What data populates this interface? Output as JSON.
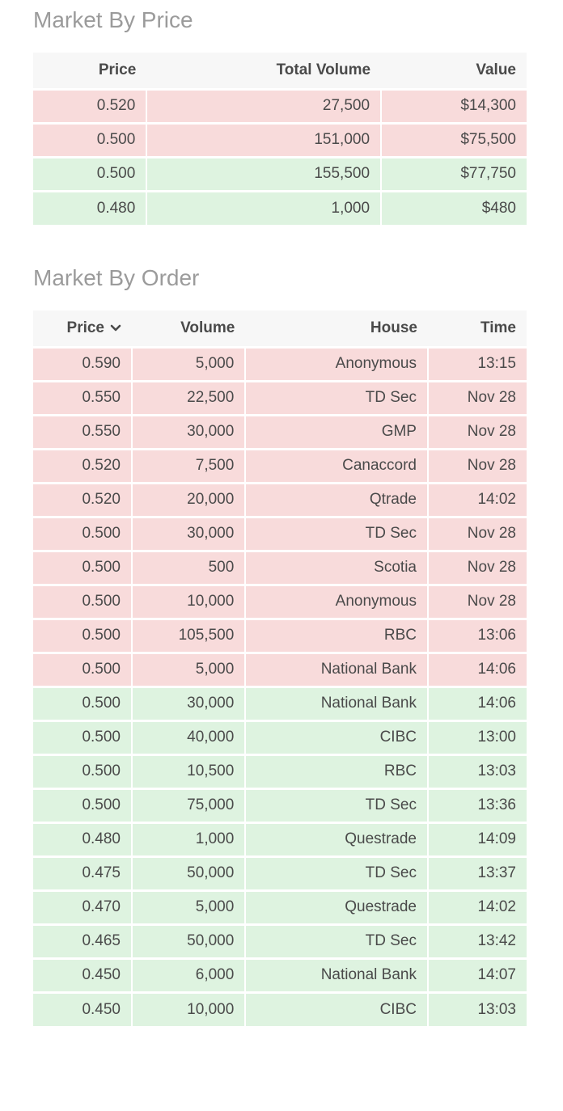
{
  "colors": {
    "ask_row_bg": "#f8dbdb",
    "bid_row_bg": "#def3e0",
    "header_bg": "#f7f7f7",
    "title_color": "#9b9b9b",
    "text_color": "#4a4a4a"
  },
  "market_by_price": {
    "title": "Market By Price",
    "columns": [
      {
        "label": "Price"
      },
      {
        "label": "Total Volume"
      },
      {
        "label": "Value"
      }
    ],
    "rows": [
      {
        "side": "ask",
        "cells": [
          "0.520",
          "27,500",
          "$14,300"
        ]
      },
      {
        "side": "ask",
        "cells": [
          "0.500",
          "151,000",
          "$75,500"
        ]
      },
      {
        "side": "bid",
        "cells": [
          "0.500",
          "155,500",
          "$77,750"
        ]
      },
      {
        "side": "bid",
        "cells": [
          "0.480",
          "1,000",
          "$480"
        ]
      }
    ]
  },
  "market_by_order": {
    "title": "Market By Order",
    "columns": [
      {
        "label": "Price",
        "sorted": true,
        "sort_icon": "chevron-down-icon"
      },
      {
        "label": "Volume"
      },
      {
        "label": "House"
      },
      {
        "label": "Time"
      }
    ],
    "rows": [
      {
        "side": "ask",
        "cells": [
          "0.590",
          "5,000",
          "Anonymous",
          "13:15"
        ]
      },
      {
        "side": "ask",
        "cells": [
          "0.550",
          "22,500",
          "TD Sec",
          "Nov 28"
        ]
      },
      {
        "side": "ask",
        "cells": [
          "0.550",
          "30,000",
          "GMP",
          "Nov 28"
        ]
      },
      {
        "side": "ask",
        "cells": [
          "0.520",
          "7,500",
          "Canaccord",
          "Nov 28"
        ]
      },
      {
        "side": "ask",
        "cells": [
          "0.520",
          "20,000",
          "Qtrade",
          "14:02"
        ]
      },
      {
        "side": "ask",
        "cells": [
          "0.500",
          "30,000",
          "TD Sec",
          "Nov 28"
        ]
      },
      {
        "side": "ask",
        "cells": [
          "0.500",
          "500",
          "Scotia",
          "Nov 28"
        ]
      },
      {
        "side": "ask",
        "cells": [
          "0.500",
          "10,000",
          "Anonymous",
          "Nov 28"
        ]
      },
      {
        "side": "ask",
        "cells": [
          "0.500",
          "105,500",
          "RBC",
          "13:06"
        ]
      },
      {
        "side": "ask",
        "cells": [
          "0.500",
          "5,000",
          "National Bank",
          "14:06"
        ]
      },
      {
        "side": "bid",
        "cells": [
          "0.500",
          "30,000",
          "National Bank",
          "14:06"
        ]
      },
      {
        "side": "bid",
        "cells": [
          "0.500",
          "40,000",
          "CIBC",
          "13:00"
        ]
      },
      {
        "side": "bid",
        "cells": [
          "0.500",
          "10,500",
          "RBC",
          "13:03"
        ]
      },
      {
        "side": "bid",
        "cells": [
          "0.500",
          "75,000",
          "TD Sec",
          "13:36"
        ]
      },
      {
        "side": "bid",
        "cells": [
          "0.480",
          "1,000",
          "Questrade",
          "14:09"
        ]
      },
      {
        "side": "bid",
        "cells": [
          "0.475",
          "50,000",
          "TD Sec",
          "13:37"
        ]
      },
      {
        "side": "bid",
        "cells": [
          "0.470",
          "5,000",
          "Questrade",
          "14:02"
        ]
      },
      {
        "side": "bid",
        "cells": [
          "0.465",
          "50,000",
          "TD Sec",
          "13:42"
        ]
      },
      {
        "side": "bid",
        "cells": [
          "0.450",
          "6,000",
          "National Bank",
          "14:07"
        ]
      },
      {
        "side": "bid",
        "cells": [
          "0.450",
          "10,000",
          "CIBC",
          "13:03"
        ]
      }
    ]
  }
}
